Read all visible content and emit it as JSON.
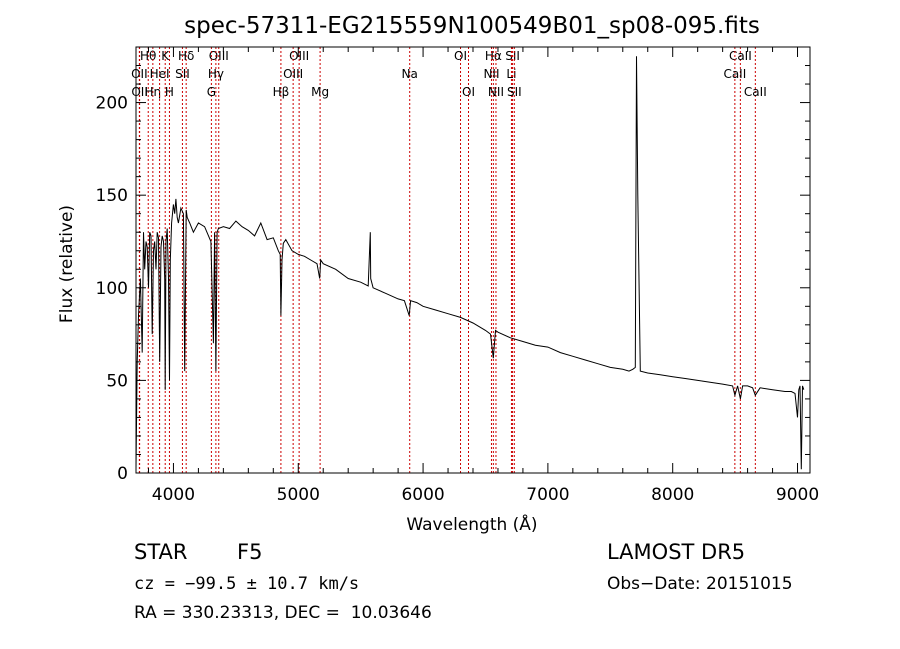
{
  "chart_data": {
    "type": "line",
    "title": "spec-57311-EG215559N100549B01_sp08-095.fits",
    "xlabel": "Wavelength (Å)",
    "ylabel": "Flux (relative)",
    "xlim": [
      3700,
      9100
    ],
    "ylim": [
      0,
      230
    ],
    "xticks": [
      4000,
      5000,
      6000,
      7000,
      8000,
      9000
    ],
    "yticks": [
      0,
      50,
      100,
      150,
      200
    ],
    "line_color": "#000000",
    "marker_color": "#cc0000",
    "series": [
      {
        "x": [
          3700,
          3710,
          3720,
          3735,
          3750,
          3760,
          3770,
          3780,
          3790,
          3800,
          3810,
          3820,
          3830,
          3840,
          3850,
          3860,
          3870,
          3880,
          3890,
          3900,
          3910,
          3920,
          3930,
          3934,
          3940,
          3950,
          3960,
          3968,
          3975,
          3985,
          4000,
          4010,
          4020,
          4030,
          4040,
          4060,
          4080,
          4090,
          4102,
          4110,
          4130,
          4160,
          4200,
          4250,
          4300,
          4320,
          4330,
          4340,
          4350,
          4360,
          4400,
          4450,
          4500,
          4550,
          4600,
          4650,
          4700,
          4750,
          4800,
          4840,
          4855,
          4861,
          4870,
          4880,
          4900,
          4950,
          5000,
          5050,
          5100,
          5150,
          5172,
          5180,
          5200,
          5300,
          5400,
          5500,
          5560,
          5577,
          5580,
          5600,
          5700,
          5800,
          5850,
          5889,
          5900,
          5950,
          6000,
          6100,
          6200,
          6300,
          6400,
          6500,
          6540,
          6563,
          6580,
          6600,
          6700,
          6800,
          6900,
          7000,
          7100,
          7200,
          7300,
          7400,
          7500,
          7600,
          7650,
          7680,
          7700,
          7710,
          7720,
          7740,
          7800,
          7900,
          8000,
          8100,
          8200,
          8300,
          8400,
          8480,
          8498,
          8520,
          8542,
          8560,
          8600,
          8640,
          8662,
          8700,
          8800,
          8900,
          8950,
          8980,
          9000,
          9010,
          9020,
          9030,
          9040,
          9050
        ],
        "y": [
          2,
          60,
          85,
          105,
          65,
          130,
          110,
          125,
          122,
          100,
          130,
          128,
          75,
          120,
          125,
          110,
          130,
          127,
          60,
          122,
          128,
          125,
          105,
          45,
          125,
          132,
          105,
          50,
          115,
          135,
          145,
          140,
          148,
          138,
          135,
          143,
          140,
          55,
          142,
          138,
          135,
          130,
          135,
          133,
          125,
          70,
          130,
          55,
          130,
          132,
          133,
          132,
          136,
          133,
          131,
          128,
          135,
          126,
          127,
          120,
          118,
          85,
          115,
          124,
          126,
          120,
          118,
          117,
          115,
          113,
          105,
          115,
          113,
          110,
          105,
          103,
          101,
          130,
          105,
          100,
          97,
          94,
          93,
          85,
          93,
          92,
          90,
          88,
          86,
          84,
          81,
          77,
          75,
          62,
          77,
          76,
          73,
          71,
          69,
          68,
          65,
          63,
          61,
          59,
          57,
          56,
          55,
          56,
          57,
          225,
          150,
          55,
          54,
          53,
          52,
          51,
          50,
          49,
          48,
          47,
          42,
          47,
          40,
          47,
          47,
          46,
          42,
          46,
          45,
          44,
          44,
          43,
          30,
          45,
          47,
          2,
          47,
          45
        ]
      }
    ],
    "lines": [
      {
        "name": "Hθ",
        "wave": 3798,
        "row": 1
      },
      {
        "name": "OII",
        "wave": 3727,
        "row": 2
      },
      {
        "name": "OII",
        "wave": 3729,
        "row": 3
      },
      {
        "name": "Hη",
        "wave": 3835,
        "row": 3
      },
      {
        "name": "K",
        "wave": 3934,
        "row": 1
      },
      {
        "name": "HeI",
        "wave": 3889,
        "row": 2
      },
      {
        "name": "H",
        "wave": 3968,
        "row": 3
      },
      {
        "name": "Hδ",
        "wave": 4102,
        "row": 1
      },
      {
        "name": "SII",
        "wave": 4072,
        "row": 2
      },
      {
        "name": "OIII",
        "wave": 4363,
        "row": 1
      },
      {
        "name": "Hγ",
        "wave": 4340,
        "row": 2
      },
      {
        "name": "G",
        "wave": 4304,
        "row": 3
      },
      {
        "name": "Hβ",
        "wave": 4861,
        "row": 3
      },
      {
        "name": "OIII",
        "wave": 5007,
        "row": 1
      },
      {
        "name": "OIII",
        "wave": 4959,
        "row": 2
      },
      {
        "name": "Mg",
        "wave": 5175,
        "row": 3
      },
      {
        "name": "Na",
        "wave": 5893,
        "row": 2
      },
      {
        "name": "OI",
        "wave": 6300,
        "row": 1
      },
      {
        "name": "OI",
        "wave": 6364,
        "row": 3
      },
      {
        "name": "Hα",
        "wave": 6563,
        "row": 1
      },
      {
        "name": "NII",
        "wave": 6548,
        "row": 2
      },
      {
        "name": "NII",
        "wave": 6584,
        "row": 3
      },
      {
        "name": "SII",
        "wave": 6717,
        "row": 1
      },
      {
        "name": "Li",
        "wave": 6708,
        "row": 2
      },
      {
        "name": "SII",
        "wave": 6731,
        "row": 3
      },
      {
        "name": "CaII",
        "wave": 8542,
        "row": 1
      },
      {
        "name": "CaII",
        "wave": 8498,
        "row": 2
      },
      {
        "name": "CaII",
        "wave": 8662,
        "row": 3
      }
    ]
  },
  "info": {
    "class": "STAR",
    "subclass": "F5",
    "survey": "LAMOST DR5",
    "cz": "cz = −99.5 ± 10.7 km/s",
    "obs_date": "Obs−Date: 20151015",
    "radec": "RA = 330.23313, DEC =  10.03646"
  }
}
